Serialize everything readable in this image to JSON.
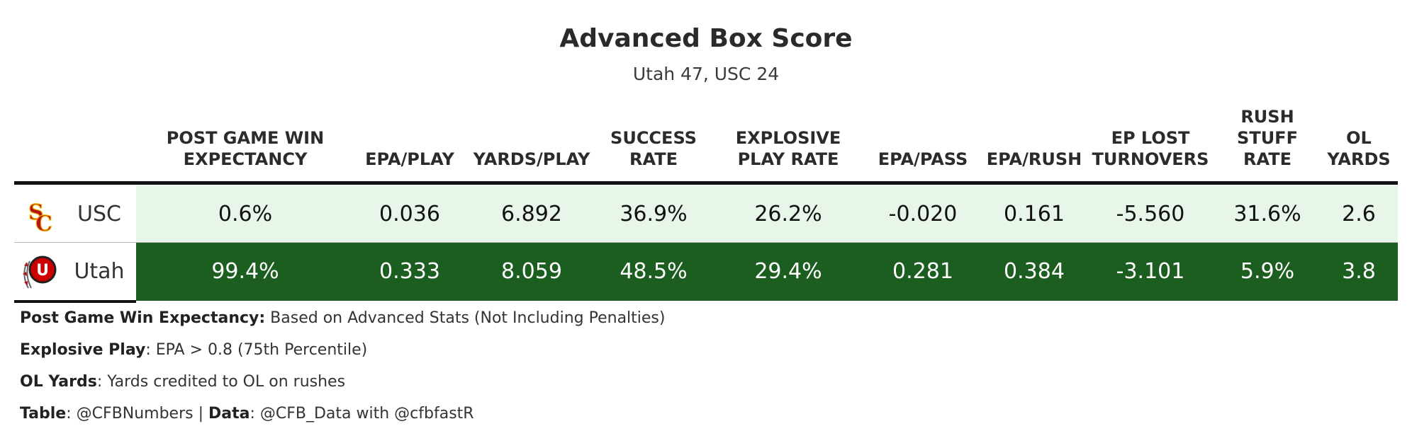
{
  "header": {
    "title": "Advanced Box Score",
    "subtitle": "Utah 47, USC 24"
  },
  "colors": {
    "low": "#e8f5e9",
    "high": "#1b5e20",
    "light_text": "#ffffff",
    "dark_text": "#111111"
  },
  "chart_data": {
    "type": "table",
    "title": "Advanced Box Score",
    "subtitle": "Utah 47, USC 24",
    "columns": [
      {
        "key": "win_exp",
        "label": "POST GAME WIN\nEXPECTANCY"
      },
      {
        "key": "epa_play",
        "label": "EPA/PLAY"
      },
      {
        "key": "yards_play",
        "label": "YARDS/PLAY"
      },
      {
        "key": "success",
        "label": "SUCCESS\nRATE"
      },
      {
        "key": "explosive",
        "label": "EXPLOSIVE\nPLAY RATE"
      },
      {
        "key": "epa_pass",
        "label": "EPA/PASS"
      },
      {
        "key": "epa_rush",
        "label": "EPA/RUSH"
      },
      {
        "key": "ep_lost",
        "label": "EP LOST\nTURNOVERS"
      },
      {
        "key": "stuff",
        "label": "RUSH\nSTUFF\nRATE"
      },
      {
        "key": "ol",
        "label": "OL\nYARDS"
      }
    ],
    "rows": [
      {
        "team": "USC",
        "logo": "usc-logo-icon",
        "shade": "low",
        "values": [
          "0.6%",
          "0.036",
          "6.892",
          "36.9%",
          "26.2%",
          "-0.020",
          "0.161",
          "-5.560",
          "31.6%",
          "2.6"
        ]
      },
      {
        "team": "Utah",
        "logo": "utah-logo-icon",
        "shade": "high",
        "values": [
          "99.4%",
          "0.333",
          "8.059",
          "48.5%",
          "29.4%",
          "0.281",
          "0.384",
          "-3.101",
          "5.9%",
          "3.8"
        ]
      }
    ]
  },
  "notes": [
    {
      "bold": "Post Game Win Expectancy:",
      "rest": " Based on Advanced Stats (Not Including Penalties)"
    },
    {
      "bold": "Explosive Play",
      "rest": ": EPA > 0.8 (75th Percentile)"
    },
    {
      "bold": "OL Yards",
      "rest": ": Yards credited to OL on rushes"
    },
    {
      "bold": "Table",
      "rest": ": @CFBNumbers | ",
      "bold2": "Data",
      "rest2": ": @CFB_Data with @cfbfastR"
    }
  ]
}
